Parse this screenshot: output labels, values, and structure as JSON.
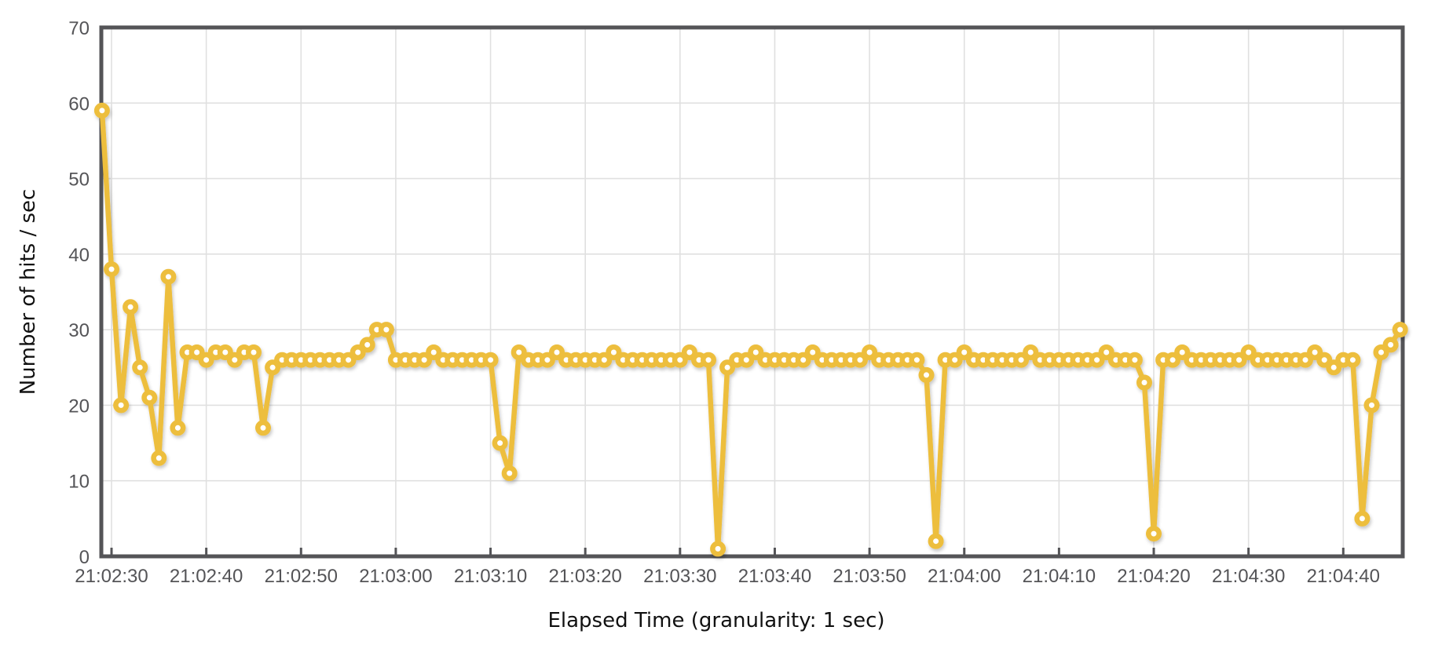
{
  "chart": {
    "background": "#ffffff",
    "y_axis": {
      "title": "Number of hits / sec",
      "min": 0,
      "max": 70,
      "tick_step": 10,
      "tick_labels": [
        "0",
        "10",
        "20",
        "30",
        "40",
        "50",
        "60",
        "70"
      ]
    },
    "x_axis": {
      "title": "Elapsed Time (granularity: 1 sec)",
      "tick_labels": [
        "21:02:30",
        "21:02:40",
        "21:02:50",
        "21:03:00",
        "21:03:10",
        "21:03:20",
        "21:03:30",
        "21:03:40",
        "21:03:50",
        "21:04:00",
        "21:04:10",
        "21:04:20",
        "21:04:30",
        "21:04:40"
      ]
    },
    "colors": {
      "line": "#EDBE3C",
      "marker_fill": "#FFFFFF",
      "grid": "#E0E0E0",
      "border": "#545457",
      "tick_text": "#545457",
      "title_text": "#111111"
    }
  },
  "chart_data": {
    "type": "line",
    "title": "",
    "xlabel": "Elapsed Time (granularity: 1 sec)",
    "ylabel": "Number of hits / sec",
    "ylim": [
      0,
      70
    ],
    "grid": true,
    "legend": false,
    "marker": "circle",
    "x_tick_labels": [
      "21:02:30",
      "21:02:40",
      "21:02:50",
      "21:03:00",
      "21:03:10",
      "21:03:20",
      "21:03:30",
      "21:03:40",
      "21:03:50",
      "21:04:00",
      "21:04:10",
      "21:04:20",
      "21:04:30",
      "21:04:40"
    ],
    "series": [
      {
        "name": "hits per second",
        "start_time": "21:02:29",
        "interval_sec": 1,
        "values": [
          59,
          38,
          20,
          33,
          25,
          21,
          13,
          37,
          17,
          27,
          27,
          26,
          27,
          27,
          26,
          27,
          27,
          17,
          25,
          26,
          26,
          26,
          26,
          26,
          26,
          26,
          26,
          27,
          28,
          30,
          30,
          26,
          26,
          26,
          26,
          27,
          26,
          26,
          26,
          26,
          26,
          26,
          15,
          11,
          27,
          26,
          26,
          26,
          27,
          26,
          26,
          26,
          26,
          26,
          27,
          26,
          26,
          26,
          26,
          26,
          26,
          26,
          27,
          26,
          26,
          1,
          25,
          26,
          26,
          27,
          26,
          26,
          26,
          26,
          26,
          27,
          26,
          26,
          26,
          26,
          26,
          27,
          26,
          26,
          26,
          26,
          26,
          24,
          2,
          26,
          26,
          27,
          26,
          26,
          26,
          26,
          26,
          26,
          27,
          26,
          26,
          26,
          26,
          26,
          26,
          26,
          27,
          26,
          26,
          26,
          23,
          3,
          26,
          26,
          27,
          26,
          26,
          26,
          26,
          26,
          26,
          27,
          26,
          26,
          26,
          26,
          26,
          26,
          27,
          26,
          25,
          26,
          26,
          5,
          20,
          27,
          28,
          30
        ]
      }
    ]
  }
}
